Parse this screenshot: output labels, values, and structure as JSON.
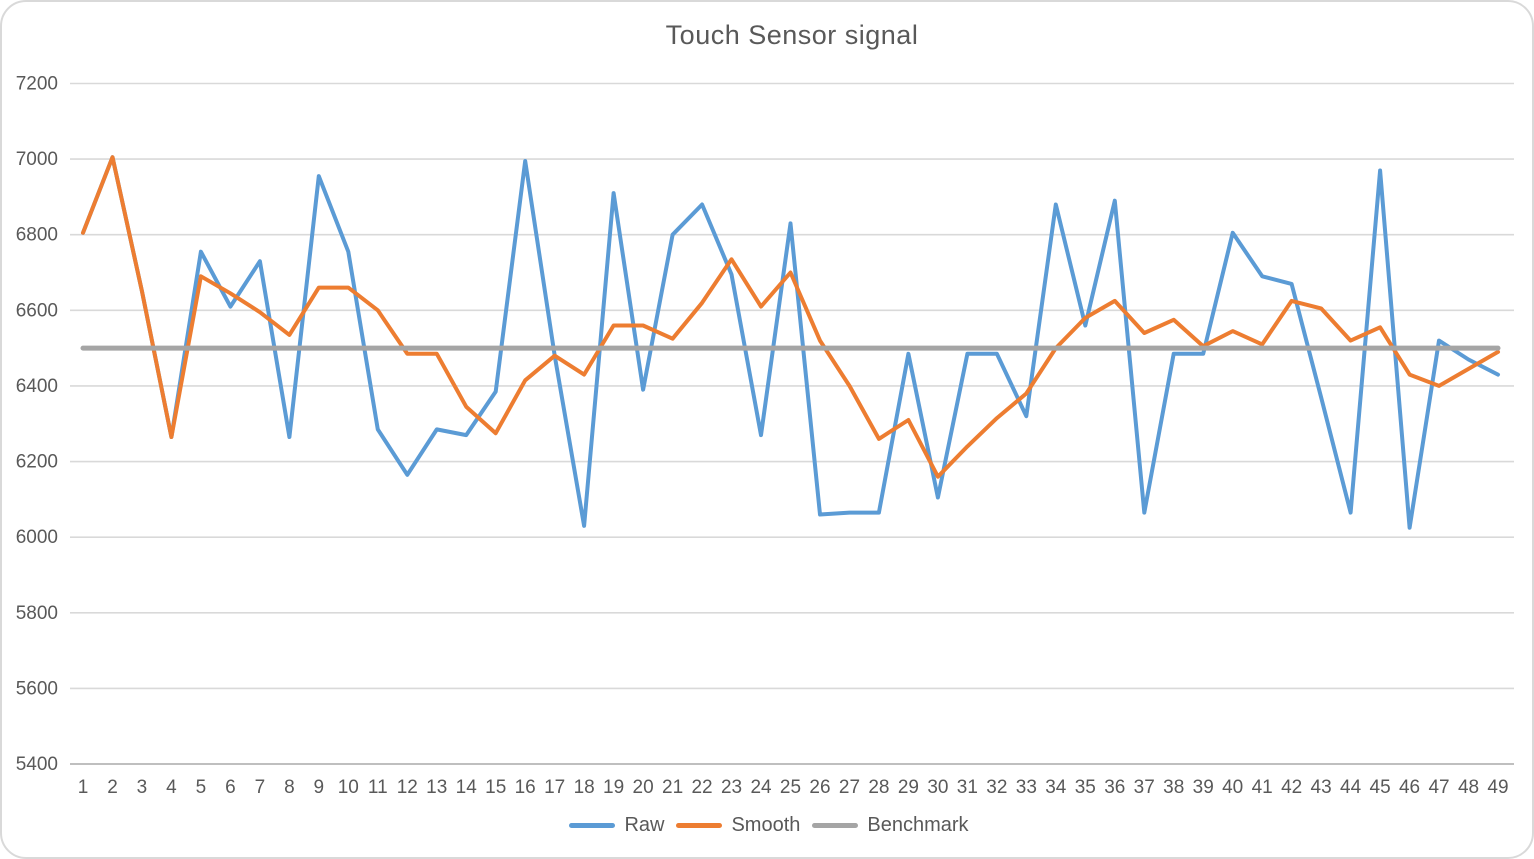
{
  "chart_data": {
    "type": "line",
    "title": "Touch Sensor signal",
    "xlabel": "",
    "ylabel": "",
    "x": [
      1,
      2,
      3,
      4,
      5,
      6,
      7,
      8,
      9,
      10,
      11,
      12,
      13,
      14,
      15,
      16,
      17,
      18,
      19,
      20,
      21,
      22,
      23,
      24,
      25,
      26,
      27,
      28,
      29,
      30,
      31,
      32,
      33,
      34,
      35,
      36,
      37,
      38,
      39,
      40,
      41,
      42,
      43,
      44,
      45,
      46,
      47,
      48,
      49
    ],
    "yticks": [
      5400,
      5600,
      5800,
      6000,
      6200,
      6400,
      6600,
      6800,
      7000,
      7200
    ],
    "ylim": [
      5400,
      7200
    ],
    "grid": "horizontal-only",
    "legend_position": "bottom-center",
    "series": [
      {
        "name": "Raw",
        "color": "#5B9BD5",
        "values": [
          6805,
          7005,
          6650,
          6265,
          6755,
          6610,
          6730,
          6265,
          6955,
          6755,
          6285,
          6165,
          6285,
          6270,
          6385,
          6995,
          6480,
          6030,
          6910,
          6390,
          6800,
          6880,
          6695,
          6270,
          6830,
          6060,
          6065,
          6065,
          6485,
          6105,
          6485,
          6485,
          6320,
          6880,
          6560,
          6890,
          6065,
          6485,
          6485,
          6805,
          6690,
          6670,
          6370,
          6065,
          6970,
          6025,
          6520,
          6470,
          6430
        ]
      },
      {
        "name": "Smooth",
        "color": "#ED7D31",
        "values": [
          6805,
          7005,
          6650,
          6265,
          6690,
          6645,
          6595,
          6535,
          6660,
          6660,
          6600,
          6485,
          6485,
          6345,
          6275,
          6415,
          6480,
          6430,
          6560,
          6560,
          6525,
          6620,
          6735,
          6610,
          6700,
          6520,
          6400,
          6260,
          6310,
          6160,
          6240,
          6315,
          6380,
          6500,
          6580,
          6625,
          6540,
          6575,
          6505,
          6545,
          6510,
          6625,
          6605,
          6520,
          6555,
          6430,
          6400,
          6445,
          6490
        ]
      },
      {
        "name": "Benchmark",
        "color": "#A5A5A5",
        "constant": 6500
      }
    ],
    "text_color": "#595959",
    "gridline_color": "#D9D9D9",
    "axis_line_color": "#BFBFBF"
  }
}
